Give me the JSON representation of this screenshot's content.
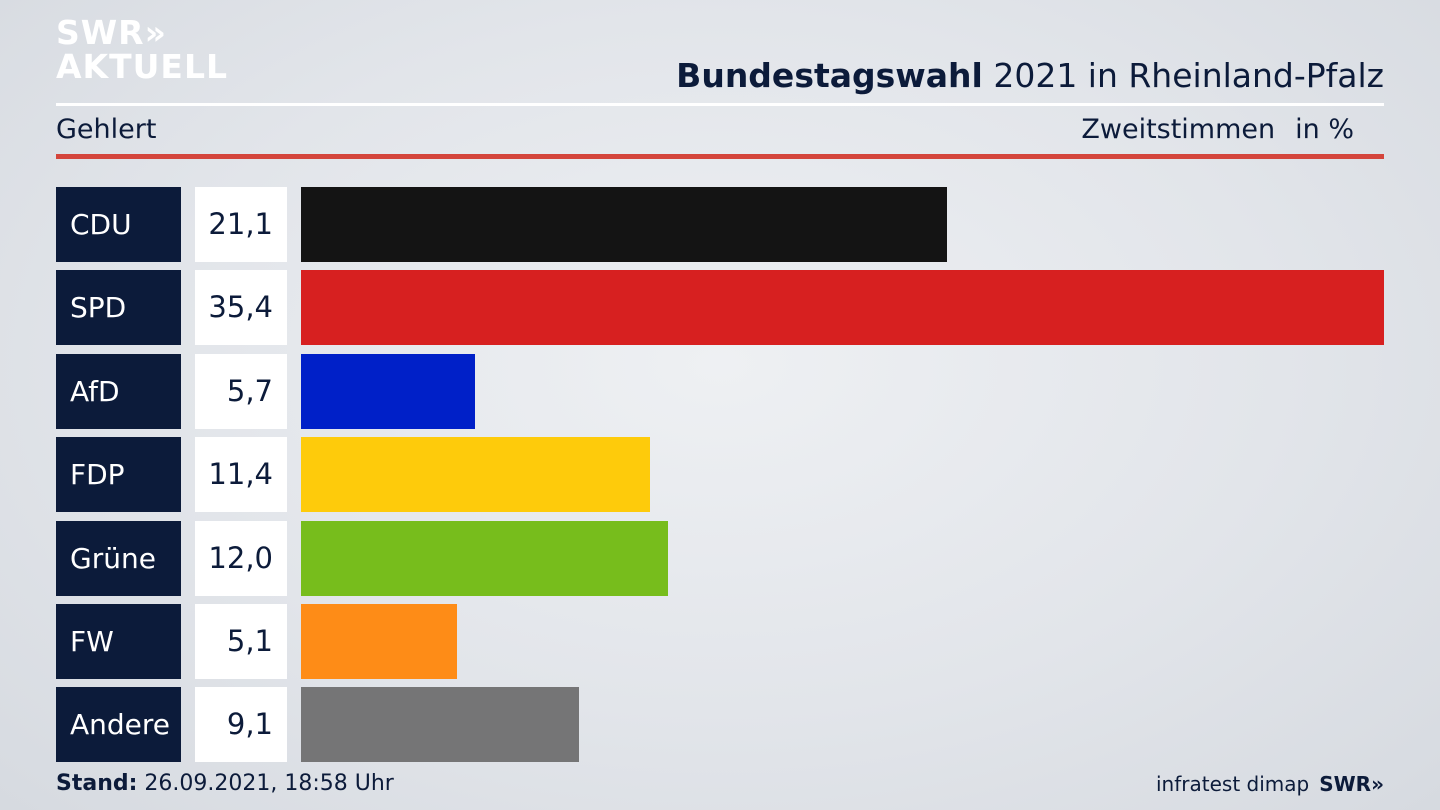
{
  "header": {
    "logo_line1": "SWR",
    "logo_chevrons": "»",
    "logo_line2": "AKTUELL",
    "title_bold": "Bundestagswahl",
    "title_rest": "2021 in Rheinland-Pfalz",
    "subtitle": "Gehlert",
    "measure_label": "Zweitstimmen",
    "unit_label": "in %"
  },
  "chart_data": {
    "type": "bar",
    "orientation": "horizontal",
    "title": "Bundestagswahl 2021 in Rheinland-Pfalz",
    "subtitle": "Gehlert",
    "measure": "Zweitstimmen",
    "unit": "in %",
    "categories": [
      "CDU",
      "SPD",
      "AfD",
      "FDP",
      "Grüne",
      "FW",
      "Andere"
    ],
    "values": [
      21.1,
      35.4,
      5.7,
      11.4,
      12.0,
      5.1,
      9.1
    ],
    "value_labels": [
      "21,1",
      "35,4",
      "5,7",
      "11,4",
      "12,0",
      "5,1",
      "9,1"
    ],
    "colors": [
      "#141414",
      "#d72020",
      "#0020c8",
      "#fecb0b",
      "#77bd1c",
      "#fe8c17",
      "#757576"
    ],
    "xlim": [
      0,
      35.4
    ],
    "grid": false,
    "legend": "none"
  },
  "footer": {
    "stand_label": "Stand:",
    "stand_value": "26.09.2021, 18:58 Uhr",
    "source": "infratest dimap",
    "source_logo": "SWR»"
  }
}
